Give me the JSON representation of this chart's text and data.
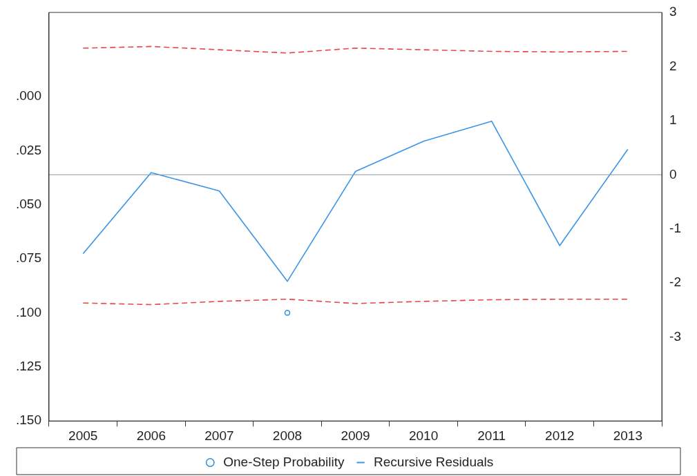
{
  "chart_data": {
    "type": "line",
    "categories": [
      "2005",
      "2006",
      "2007",
      "2008",
      "2009",
      "2010",
      "2011",
      "2012",
      "2013"
    ],
    "series": [
      {
        "name": "One-Step Probability",
        "type": "scatter",
        "axis": "y",
        "color": "#2a8fd8",
        "marker": "circle",
        "values": [
          null,
          null,
          null,
          0.1,
          null,
          null,
          null,
          null,
          null
        ]
      },
      {
        "name": "Recursive Residuals",
        "axis": "y2",
        "color": "#3a94e6",
        "line_style": "solid",
        "marker": "none",
        "values": [
          -1.46,
          0.04,
          -0.3,
          -1.97,
          0.06,
          0.62,
          0.99,
          -1.31,
          0.47
        ]
      },
      {
        "axis": "y2",
        "color": "#e8454a",
        "line_style": "dashed",
        "marker": "none",
        "values": [
          2.34,
          2.37,
          2.31,
          2.25,
          2.34,
          2.31,
          2.28,
          2.27,
          2.28
        ]
      },
      {
        "axis": "y2",
        "color": "#e8454a",
        "line_style": "dashed",
        "marker": "none",
        "values": [
          -2.37,
          -2.4,
          -2.34,
          -2.3,
          -2.38,
          -2.34,
          -2.31,
          -2.3,
          -2.3
        ]
      }
    ],
    "ylim": [
      0.15,
      -0.039
    ],
    "yticks": [
      {
        "value": 0,
        "label": ".000"
      },
      {
        "value": 0.025,
        "label": ".025"
      },
      {
        "value": 0.05,
        "label": ".050"
      },
      {
        "value": 0.075,
        "label": ".075"
      },
      {
        "value": 0.1,
        "label": ".100"
      },
      {
        "value": 0.125,
        "label": ".125"
      },
      {
        "value": 0.15,
        "label": ".150"
      }
    ],
    "y2lim": [
      -4.55,
      3
    ],
    "y2ticks": [
      -3,
      -2,
      -1,
      0,
      1,
      2,
      3
    ],
    "ref_lines": [
      {
        "axis": "y2",
        "value": 0,
        "color": "#8a98a8"
      }
    ],
    "legend": "bottom",
    "grid": false
  }
}
